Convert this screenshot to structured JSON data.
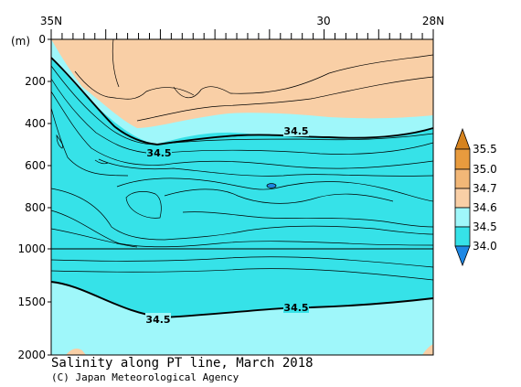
{
  "title": "Salinity along PT line, March 2018",
  "credit": "(C) Japan Meteorological Agency",
  "chart_data": {
    "type": "heatmap",
    "title": "Salinity along PT line, March 2018",
    "ylabel": "(m)",
    "xlim_lat": [
      35,
      28
    ],
    "x_tick_labels": [
      {
        "lat": 35,
        "label": "35N"
      },
      {
        "lat": 30,
        "label": "30"
      },
      {
        "lat": 28,
        "label": "28N"
      }
    ],
    "ylim_depth": [
      0,
      2000
    ],
    "y_scale": "piecewise linear: 0-1000 m upper panel, 1000-2000 m compressed lower panel",
    "y_tick_labels": [
      "0",
      "200",
      "400",
      "600",
      "800",
      "1000",
      "1500",
      "2000"
    ],
    "colorbar": {
      "levels": [
        34.0,
        34.5,
        34.6,
        34.7,
        35.0,
        35.5
      ],
      "labels": [
        "34.0",
        "34.5",
        "34.6",
        "34.7",
        "35.0",
        "35.5"
      ],
      "colors": {
        "below_34.0": "#1e88e5",
        "34.0_34.5": "#36e2e8",
        "34.5_34.6": "#9ff7fa",
        "34.6_34.7": "#f9cfa6",
        "34.7_35.0": "#f2b777",
        "35.0_35.5": "#e89b3e",
        "above_35.5": "#d6831e"
      }
    },
    "contour_labels": [
      "34.5",
      "34.5",
      "34.5",
      "34.5"
    ],
    "features": {
      "surface_layer_salinity": "34.6-34.7",
      "intermediate_minimum": "below 34.5",
      "deep_layer": "34.5-34.6"
    }
  }
}
